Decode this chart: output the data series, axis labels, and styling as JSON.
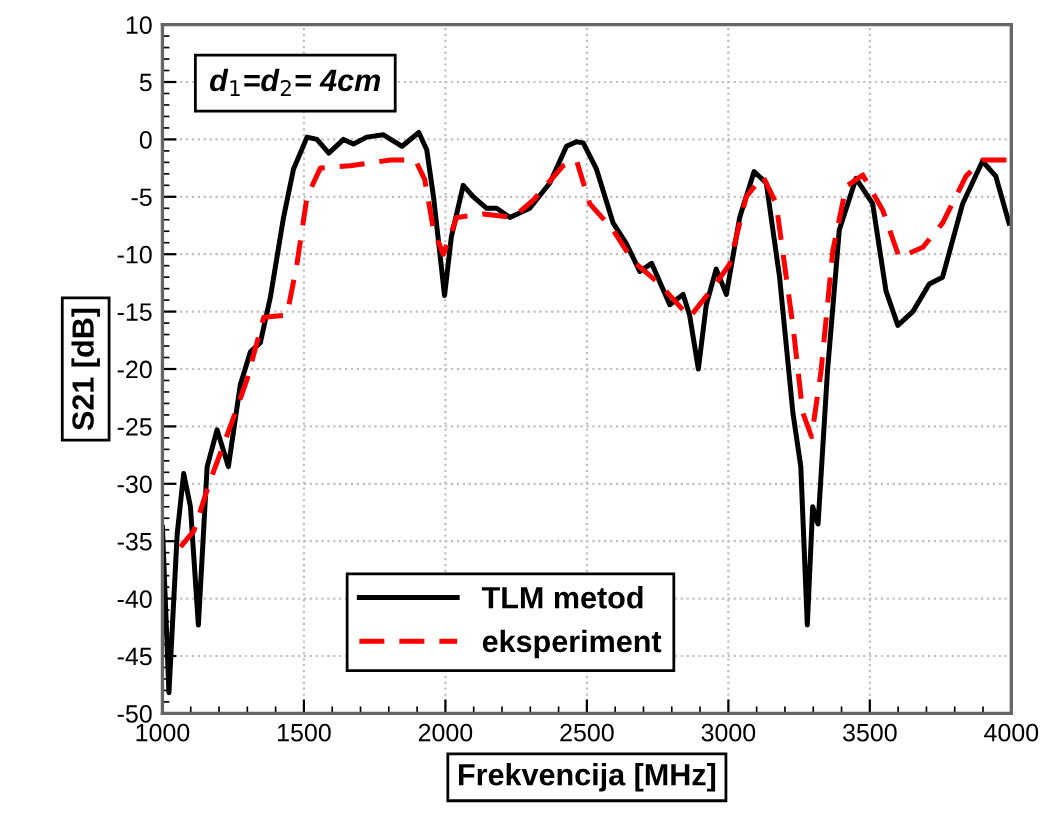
{
  "chart_data": {
    "type": "line",
    "xlabel": "Frekvencija [MHz]",
    "ylabel": "S21 [dB]",
    "xlim": [
      1000,
      4000
    ],
    "xticks": [
      1000,
      1500,
      2000,
      2500,
      3000,
      3500,
      4000
    ],
    "ylim": [
      -50,
      10
    ],
    "yticks": [
      -50,
      -45,
      -40,
      -35,
      -30,
      -25,
      -20,
      -15,
      -10,
      -5,
      0,
      5,
      10
    ],
    "grid": true,
    "legend": "bottom",
    "annotations": [
      "d$_{1}$=d$_{2}$= 4cm"
    ],
    "series": [
      {
        "name": "TLM metod",
        "color": "#000000",
        "line_style": "solid",
        "x": [
          1000,
          1023,
          1052,
          1075,
          1099,
          1127,
          1158,
          1193,
          1233,
          1275,
          1311,
          1346,
          1381,
          1428,
          1463,
          1511,
          1546,
          1588,
          1640,
          1675,
          1722,
          1781,
          1847,
          1906,
          1934,
          1958,
          1997,
          2021,
          2063,
          2099,
          2146,
          2181,
          2228,
          2298,
          2369,
          2428,
          2463,
          2487,
          2534,
          2593,
          2640,
          2687,
          2729,
          2793,
          2840,
          2863,
          2894,
          2922,
          2957,
          2993,
          3040,
          3091,
          3134,
          3181,
          3228,
          3256,
          3279,
          3298,
          3317,
          3350,
          3392,
          3451,
          3510,
          3557,
          3599,
          3652,
          3710,
          3757,
          3828,
          3898,
          3945,
          3992
        ],
        "values": [
          -33.8,
          -48.2,
          -34.4,
          -29.1,
          -32,
          -42.3,
          -28.5,
          -25.3,
          -28.5,
          -21.4,
          -18.5,
          -17.7,
          -13.8,
          -6.8,
          -2.6,
          0.2,
          0,
          -1.2,
          0,
          -0.4,
          0.2,
          0.4,
          -0.6,
          0.6,
          -0.9,
          -5,
          -13.6,
          -8.5,
          -4,
          -5,
          -6,
          -6,
          -6.8,
          -6,
          -3.8,
          -0.6,
          -0.2,
          -0.3,
          -2.6,
          -7.3,
          -9.1,
          -11.5,
          -10.8,
          -14.4,
          -13.5,
          -15.3,
          -20,
          -14.4,
          -11.3,
          -13.5,
          -6.8,
          -2.8,
          -3.8,
          -12,
          -23.8,
          -28.5,
          -42.3,
          -32,
          -33.5,
          -20.3,
          -7.9,
          -3.4,
          -5.6,
          -13.2,
          -16.2,
          -15,
          -12.6,
          -12,
          -5.6,
          -1.9,
          -3.2,
          -7.3
        ]
      },
      {
        "name": "eksperiment",
        "color": "#ff0000",
        "line_style": "dashed",
        "x": [
          1064,
          1111,
          1169,
          1240,
          1299,
          1358,
          1440,
          1475,
          1511,
          1558,
          1663,
          1805,
          1894,
          1927,
          1958,
          1993,
          2040,
          2134,
          2240,
          2310,
          2416,
          2463,
          2510,
          2593,
          2663,
          2757,
          2863,
          2946,
          3004,
          3063,
          3122,
          3169,
          3228,
          3263,
          3294,
          3327,
          3369,
          3416,
          3475,
          3546,
          3604,
          3687,
          3757,
          3840,
          3898,
          3992
        ],
        "values": [
          -35.5,
          -34.1,
          -29.7,
          -25,
          -20.9,
          -15.5,
          -15.3,
          -10.9,
          -5,
          -2.5,
          -2.3,
          -1.8,
          -1.8,
          -3.5,
          -7.9,
          -10,
          -6.8,
          -6.5,
          -6.8,
          -5.3,
          -2.3,
          -1.8,
          -5.6,
          -7.9,
          -10.6,
          -12.6,
          -15.5,
          -12.9,
          -10.9,
          -5,
          -3.2,
          -5.6,
          -16.2,
          -23.8,
          -25.9,
          -20.3,
          -9.7,
          -4.1,
          -3.1,
          -6.2,
          -10.3,
          -9.4,
          -7.3,
          -3.2,
          -1.8,
          -1.8
        ]
      }
    ]
  }
}
